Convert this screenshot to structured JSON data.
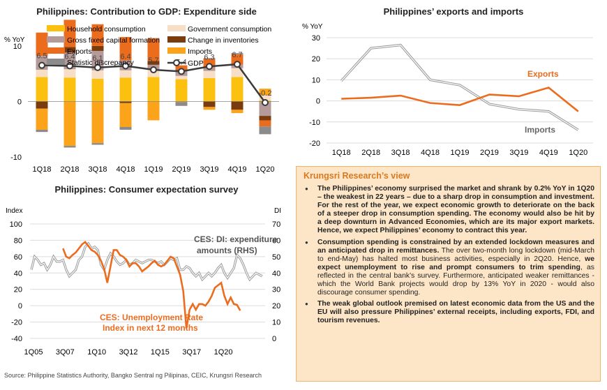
{
  "titles": {
    "gdp": "Philippines: Contribution to GDP: Expenditure side",
    "trade": "Philippines’ exports and imports",
    "survey": "Philippines: Consumer expectation survey"
  },
  "colors": {
    "household": "#fcc00f",
    "government": "#f6dfc6",
    "gfcf": "#b59a9a",
    "inventories": "#7a3b0e",
    "exports": "#ec6c1e",
    "imports": "#fba41b",
    "discrepancy": "#8b8b8b",
    "gdp_line": "#3a3a3a",
    "exports_line": "#ec6c1e",
    "imports_line": "#aaaaaa",
    "ces_di": "#aaaaaa",
    "unemployment": "#ec6c1e"
  },
  "chart_data": [
    {
      "type": "bar",
      "stacked": true,
      "title": "Philippines: Contribution to GDP: Expenditure side",
      "ylabel": "% YoY",
      "ylim": [
        -10,
        15
      ],
      "yticks": [
        -10,
        0,
        10
      ],
      "categories": [
        "1Q18",
        "2Q18",
        "3Q18",
        "4Q18",
        "1Q19",
        "2Q19",
        "3Q19",
        "4Q19",
        "1Q20"
      ],
      "legend": [
        "Household consumption",
        "Government consumption",
        "Gross fixed capital formation",
        "Change in inventories",
        "Exports",
        "Imports",
        "Statistic discrepancy",
        "GDP"
      ],
      "series": [
        {
          "name": "Household consumption",
          "key": "household",
          "values": [
            4.4,
            4.3,
            4.1,
            4.3,
            4.4,
            4.0,
            4.2,
            4.4,
            0.2
          ]
        },
        {
          "name": "Government consumption",
          "key": "government",
          "values": [
            1.3,
            1.5,
            1.5,
            1.3,
            1.3,
            0.6,
            1.3,
            1.6,
            0.9
          ]
        },
        {
          "name": "Gross fixed capital formation",
          "key": "gfcf",
          "values": [
            2.5,
            3.0,
            3.5,
            1.8,
            0.9,
            1.0,
            0.6,
            0.6,
            -2.6
          ]
        },
        {
          "name": "Change in inventories",
          "key": "inventories",
          "values": [
            -1.3,
            1.0,
            0.9,
            -0.3,
            0.7,
            0.1,
            -1.0,
            -1.5,
            -0.8
          ]
        },
        {
          "name": "Exports",
          "key": "exports",
          "values": [
            4.2,
            4.9,
            3.9,
            4.2,
            4.1,
            0.8,
            1.6,
            1.9,
            -1.1
          ]
        },
        {
          "name": "Imports",
          "key": "imports",
          "values": [
            -3.8,
            -8.0,
            -7.5,
            -4.3,
            -3.4,
            -0.1,
            -0.5,
            -0.6,
            1.2
          ]
        },
        {
          "name": "Statistic discrepancy",
          "key": "discrepancy",
          "values": [
            -0.4,
            -0.3,
            -0.3,
            -0.5,
            0.0,
            -0.7,
            0.1,
            0.2,
            -1.4
          ]
        }
      ],
      "line": {
        "name": "GDP",
        "values": [
          6.5,
          6.4,
          6.1,
          6.4,
          5.7,
          5.4,
          6.3,
          6.7,
          -0.2
        ],
        "labels": [
          "6.5",
          "6.4",
          "6.1",
          "6.4",
          "5.7",
          "5.4",
          "6.3",
          "6.7",
          "-0.2"
        ]
      }
    },
    {
      "type": "line",
      "title": "Philippines’ exports and imports",
      "ylabel": "% YoY",
      "ylim": [
        -20,
        30
      ],
      "yticks": [
        -20,
        -10,
        0,
        10,
        20,
        30
      ],
      "grid": true,
      "categories": [
        "1Q18",
        "2Q18",
        "3Q18",
        "4Q18",
        "1Q19",
        "2Q19",
        "3Q19",
        "4Q19",
        "1Q20"
      ],
      "series": [
        {
          "name": "Exports",
          "key": "exports_line",
          "values": [
            1.0,
            1.5,
            2.5,
            -1.0,
            -2.0,
            3.0,
            2.2,
            6.3,
            -5.0
          ]
        },
        {
          "name": "Imports",
          "key": "imports_line",
          "values": [
            9.5,
            25.0,
            26.5,
            10.0,
            7.5,
            -1.5,
            -4.0,
            -5.0,
            -13.8
          ]
        }
      ]
    },
    {
      "type": "line",
      "title": "Philippines: Consumer expectation survey",
      "ylabel_left": "Index",
      "ylabel_right": "DI",
      "ylim_left": [
        -40,
        100
      ],
      "yticks_left": [
        -40,
        -20,
        0,
        20,
        40,
        60,
        80,
        100
      ],
      "ylim_right": [
        0,
        70
      ],
      "yticks_right": [
        0,
        10,
        20,
        30,
        40,
        50,
        60,
        70
      ],
      "grid": true,
      "x_start": "1Q05",
      "xticks": [
        "1Q05",
        "3Q07",
        "1Q10",
        "3Q12",
        "1Q15",
        "3Q17",
        "1Q20"
      ],
      "series": [
        {
          "name": "CES: DI: expenditure amounts (RHS)",
          "key": "ces_di",
          "axis": "right",
          "values": [
            42,
            50,
            48,
            45,
            46,
            42,
            45,
            50,
            47,
            47,
            48,
            42,
            38,
            40,
            42,
            48,
            50,
            56,
            58,
            55,
            56,
            54,
            45,
            42,
            48,
            52,
            50,
            47,
            45,
            46,
            48,
            45,
            46,
            48,
            47,
            46,
            47,
            48,
            48,
            47,
            46,
            47,
            45,
            47,
            49,
            48,
            49,
            42,
            42,
            44,
            43,
            40,
            38,
            40,
            36,
            38,
            40,
            38,
            40,
            43,
            45,
            40,
            37,
            40,
            43,
            51,
            49,
            45,
            40,
            36,
            38,
            40,
            39,
            38
          ]
        },
        {
          "name": "CES: Unemployment Rate Index in next 12 months",
          "key": "unemployment",
          "axis": "left",
          "values": [
            null,
            null,
            null,
            null,
            null,
            null,
            null,
            null,
            null,
            null,
            70,
            60,
            58,
            62,
            65,
            70,
            75,
            78,
            73,
            68,
            66,
            62,
            55,
            45,
            28,
            48,
            68,
            68,
            62,
            60,
            56,
            48,
            52,
            52,
            48,
            42,
            45,
            48,
            52,
            55,
            50,
            48,
            50,
            55,
            60,
            58,
            48,
            38,
            18,
            -28,
            -5,
            2,
            -5,
            2,
            2,
            0,
            5,
            12,
            22,
            25,
            28,
            12,
            2,
            10,
            2,
            1,
            -6
          ]
        }
      ],
      "annotations": [
        "CES: DI: expenditure amounts (RHS)",
        "CES: Unemployment Rate Index in next 12 months"
      ]
    }
  ],
  "labels": {
    "pct_yoy": "% YoY",
    "pct_yoy2": "% YoY",
    "index": "Index",
    "di": "DI",
    "exports_tag": "Exports",
    "imports_tag": "Imports",
    "ces_di_1": "CES: DI: expenditure",
    "ces_di_2": "amounts (RHS)",
    "unemp_1": "CES: Unemployment Rate",
    "unemp_2": "Index in next 12 months"
  },
  "research": {
    "heading": "Krungsri Research’s view",
    "p1": "The Philippines’ economy surprised the market and shrank by 0.2% YoY in 1Q20 – the weakest in 22 years – due to a sharp drop in consumption and investment. For the rest of the year, we expect economic growth to deteriorate on the back of a steeper drop in consumption spending. The economy would also be hit by a deep downturn in Advanced Economies, which are its major export markets. Hence, we expect Philippines’ economy to contract this year.",
    "p2a": "Consumption spending is constrained by an extended lockdown measures and an anticipated drop in remittances.",
    "p2b": " The over two-month long lockdown (mid-March to end-May) has halted most business activities, especially in 2Q20. Hence, ",
    "p2c": "we expect unemployment to rise and prompt consumers to trim spending",
    "p2d": ", as reflected in the central bank’s survey. Furthermore, anticipated weaker remittances - which the World Bank projects would drop by 13% YoY in 2020 - would also discourage consumer spending.",
    "p3": "The weak global outlook premised on latest economic data from the US and the EU will also pressure Philippines’ external receipts, including exports, FDI, and tourism revenues."
  },
  "source": "Source: Philippine Statistics Authority, Bangko Sentral ng Pilipinas, CEIC, Krungsri Research"
}
